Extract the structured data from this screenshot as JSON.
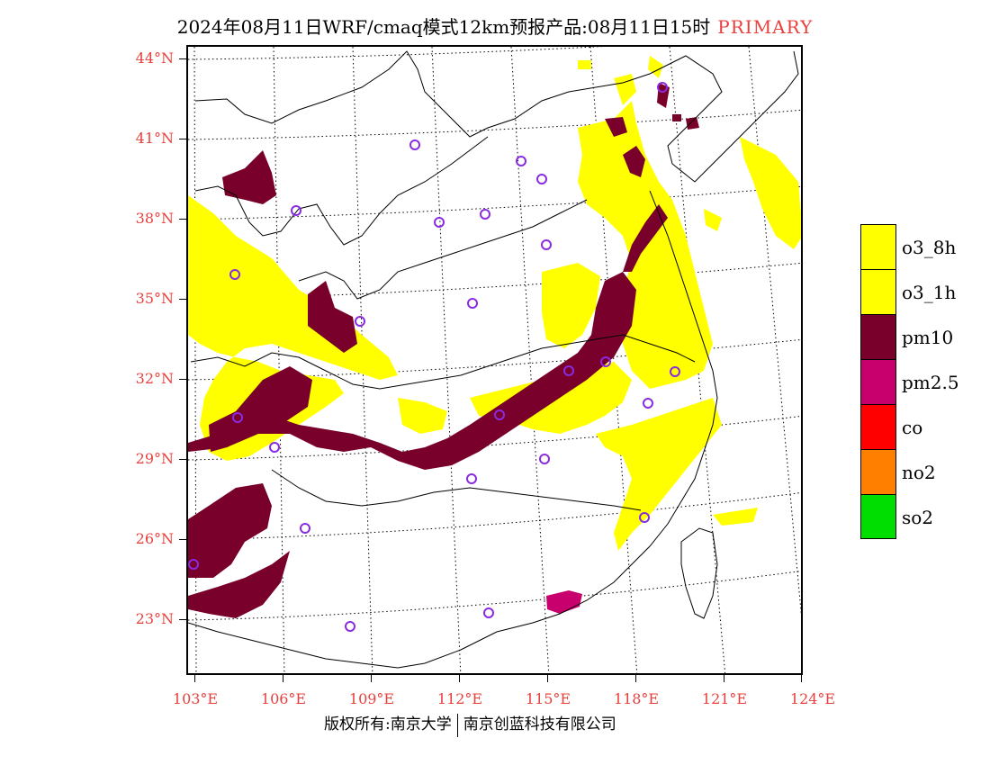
{
  "title": {
    "main": "2024年08月11日WRF/cmaq模式12km预报产品:08月11日15时",
    "tag": "PRIMARY"
  },
  "map": {
    "lat_labels": [
      "44°N",
      "41°N",
      "38°N",
      "35°N",
      "32°N",
      "29°N",
      "26°N",
      "23°N"
    ],
    "lon_labels": [
      "103°E",
      "106°E",
      "109°E",
      "112°E",
      "115°E",
      "118°E",
      "121°E",
      "124°E"
    ],
    "layers": [
      {
        "name": "o3_8h",
        "color": "#ffff00"
      },
      {
        "name": "pm10",
        "color": "#78002a"
      },
      {
        "name": "pm2.5",
        "color": "#c8006e"
      },
      {
        "name": "station-circle",
        "color": "#8a2be2"
      }
    ]
  },
  "legend": [
    {
      "label": "o3_8h",
      "color": "#ffff00"
    },
    {
      "label": "o3_1h",
      "color": "#ffff00"
    },
    {
      "label": "pm10",
      "color": "#78002a"
    },
    {
      "label": "pm2.5",
      "color": "#c8006e"
    },
    {
      "label": "co",
      "color": "#ff0000"
    },
    {
      "label": "no2",
      "color": "#ff7f00"
    },
    {
      "label": "so2",
      "color": "#00dd00"
    }
  ],
  "footer": {
    "left": "版权所有:南京大学",
    "right": "南京创蓝科技有限公司"
  }
}
